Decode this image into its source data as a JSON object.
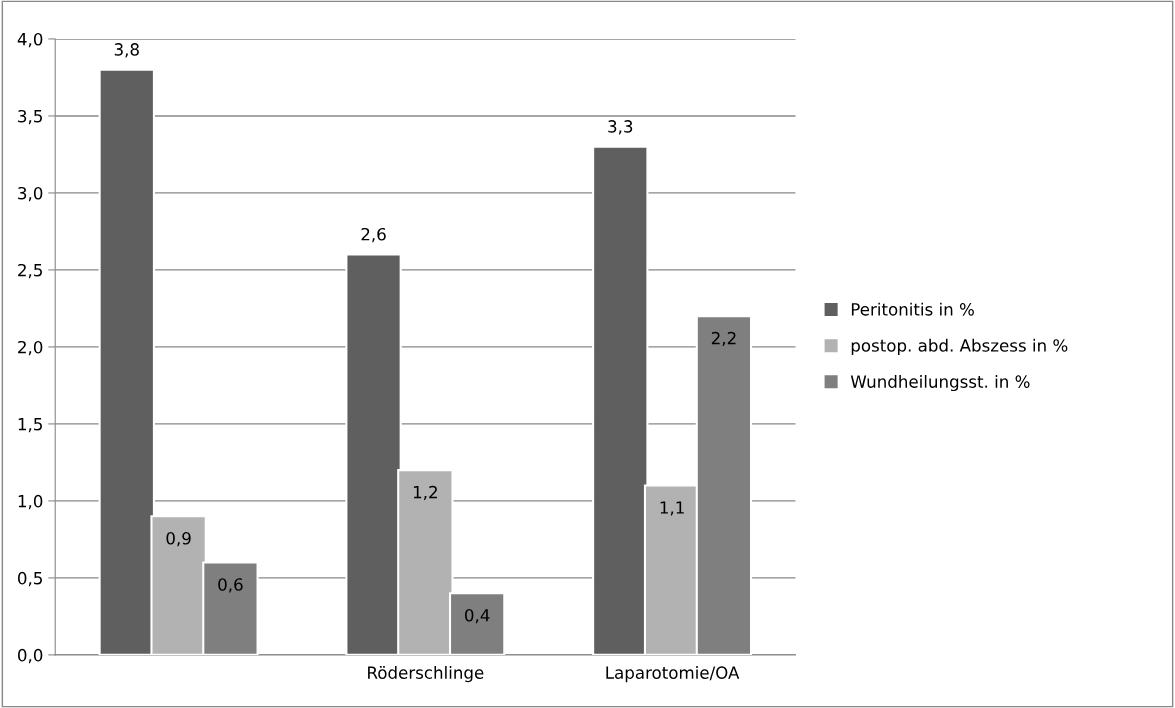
{
  "chart_data": {
    "type": "bar",
    "categories": [
      null,
      "Röderschlinge",
      "Laparotomie/OA"
    ],
    "series": [
      {
        "name": "Peritonitis in %",
        "color": "#5f5f5f",
        "values": [
          3.8,
          2.6,
          3.3
        ],
        "value_labels": [
          "3,8",
          "2,6",
          "3,3"
        ]
      },
      {
        "name": "postop. abd. Abszess in %",
        "color": "#b2b2b2",
        "values": [
          0.9,
          1.2,
          1.1
        ],
        "value_labels": [
          "0,9",
          "1,2",
          "1,1"
        ]
      },
      {
        "name": "Wundheilungsst. in %",
        "color": "#7f7f7f",
        "values": [
          0.6,
          0.4,
          2.2
        ],
        "value_labels": [
          "0,6",
          "0,4",
          "2,2"
        ]
      }
    ],
    "ylim": [
      0,
      4
    ],
    "yticks": [
      {
        "value": 0,
        "label": "0,0"
      },
      {
        "value": 0.5,
        "label": "0,5"
      },
      {
        "value": 1,
        "label": "1,0"
      },
      {
        "value": 1.5,
        "label": "1,5"
      },
      {
        "value": 2,
        "label": "2,0"
      },
      {
        "value": 2.5,
        "label": "2,5"
      },
      {
        "value": 3,
        "label": "3,0"
      },
      {
        "value": 3.5,
        "label": "3,5"
      },
      {
        "value": 4,
        "label": "4,0"
      }
    ],
    "grid": "y",
    "legend": "right"
  }
}
